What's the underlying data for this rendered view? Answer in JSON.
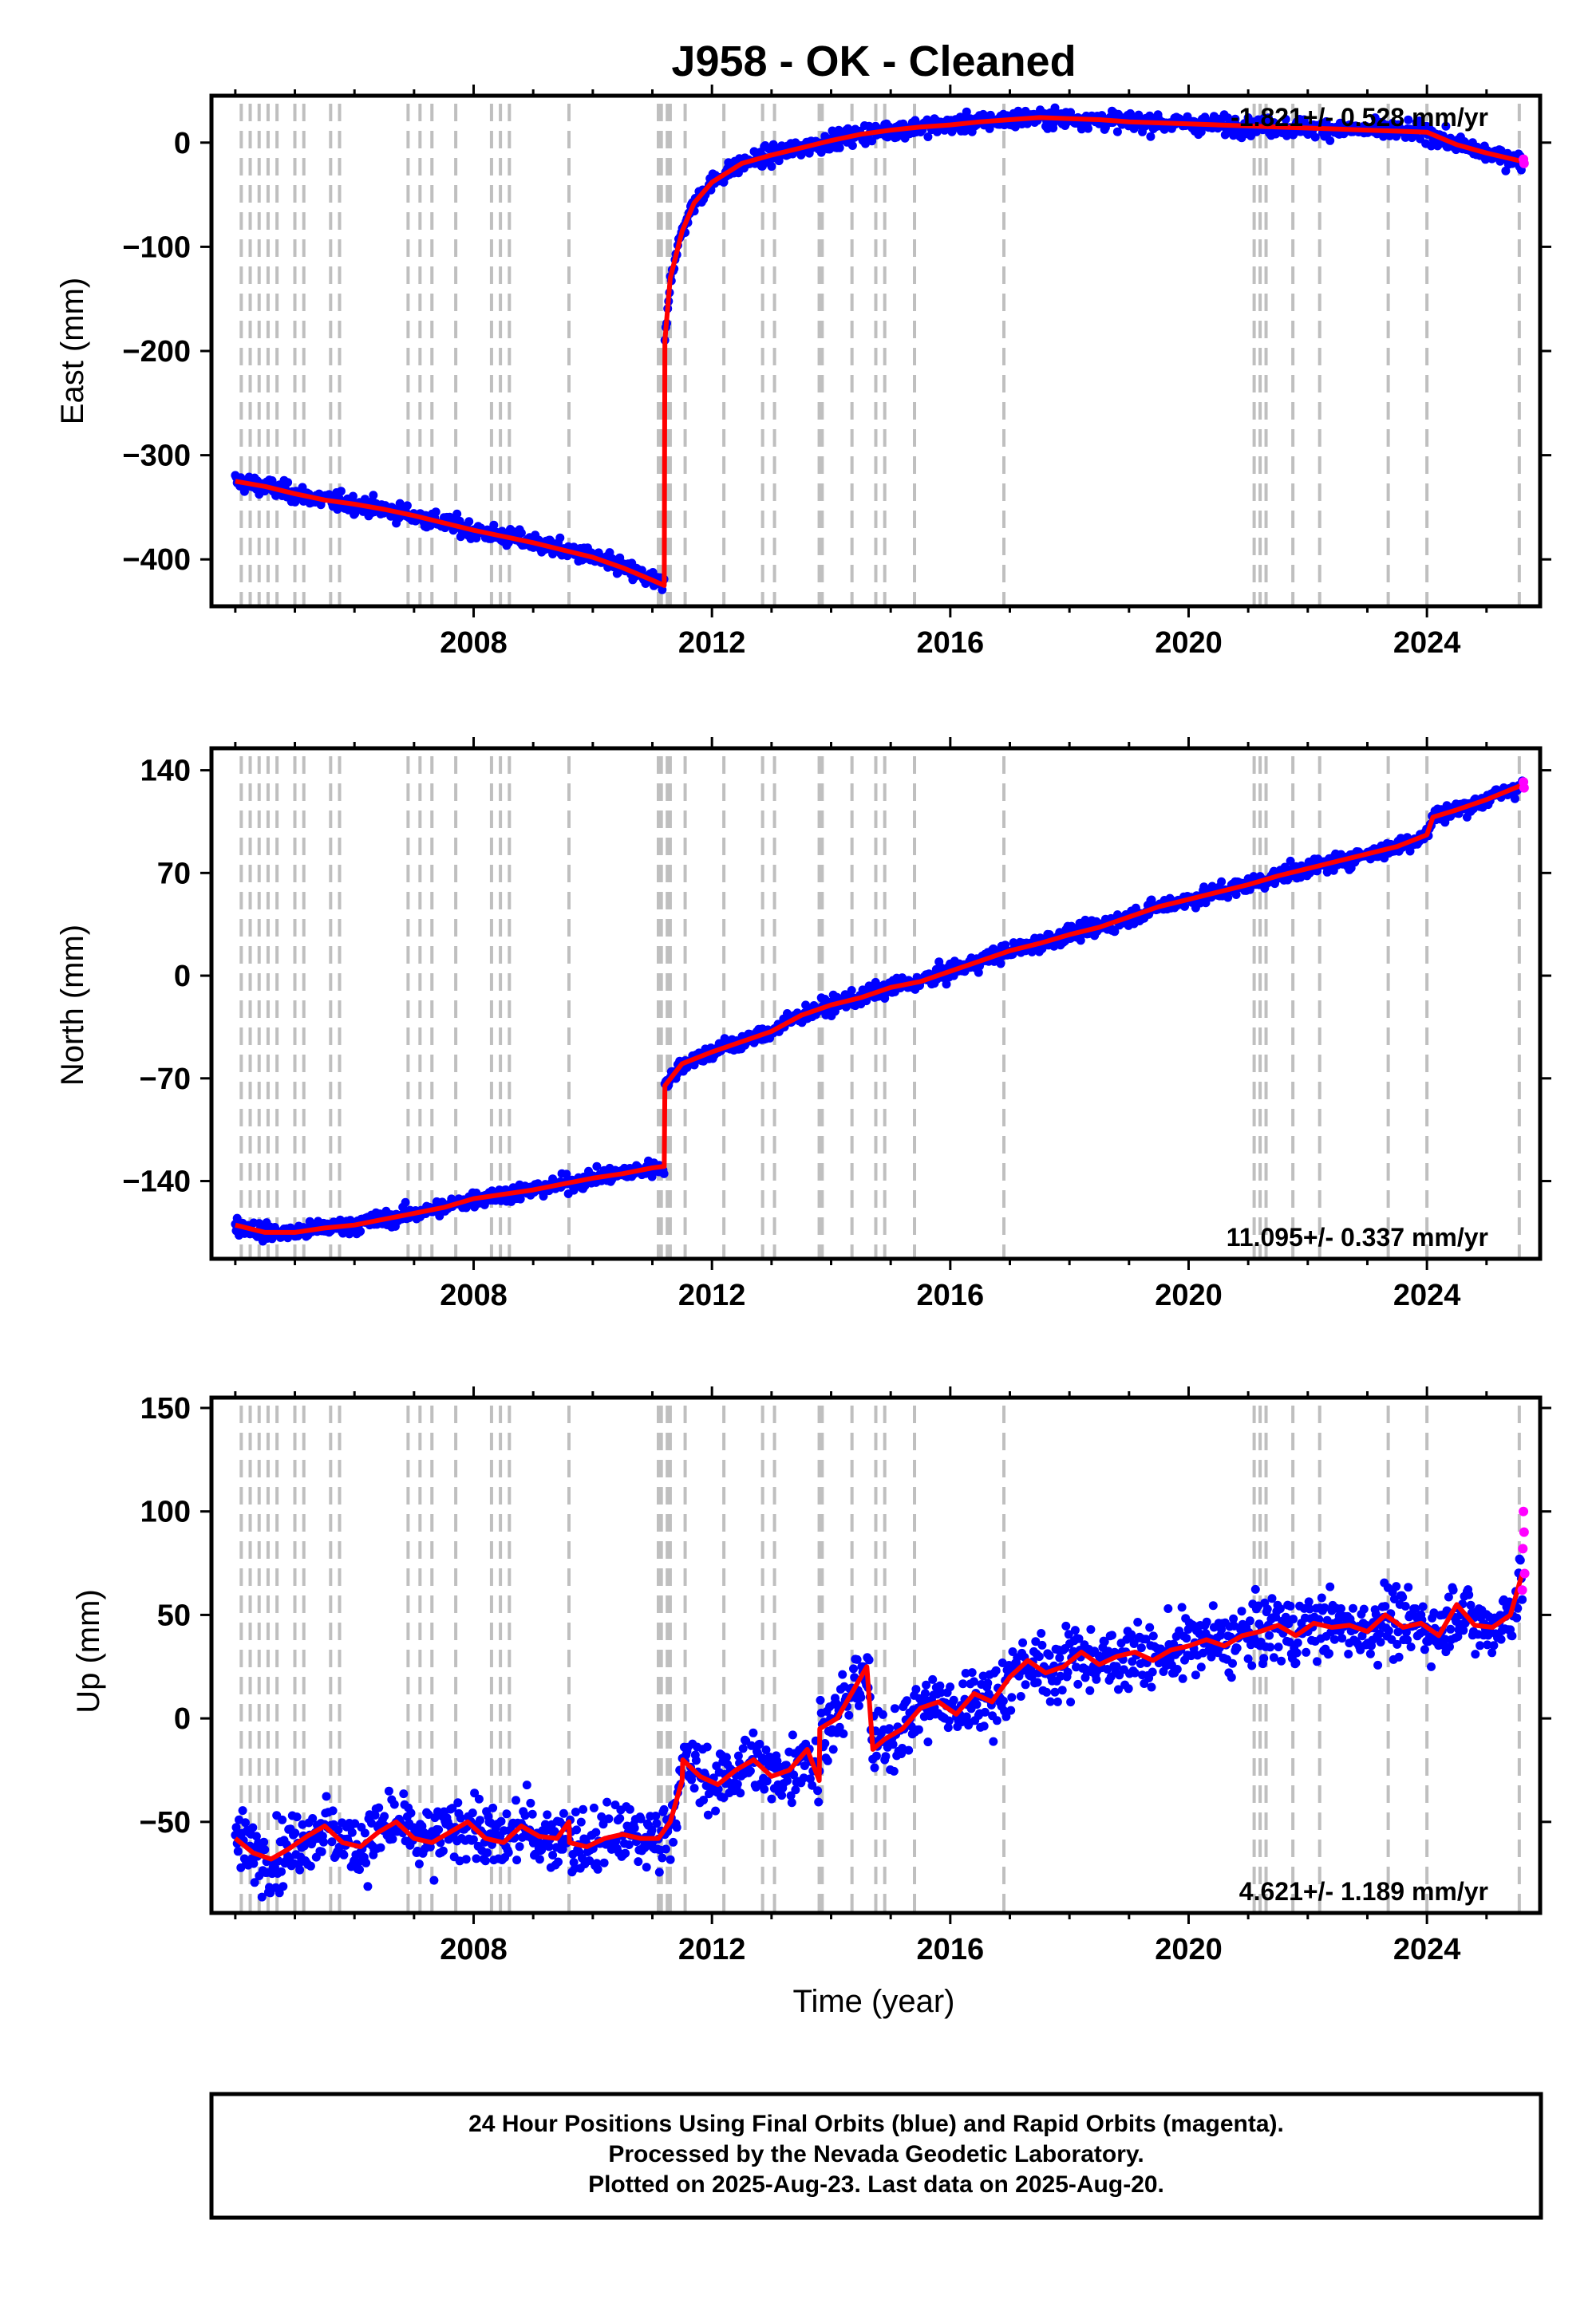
{
  "title": "J958  - OK - Cleaned",
  "footer": {
    "line1": "24 Hour Positions Using Final Orbits (blue) and Rapid Orbits (magenta).",
    "line2": "Processed by the Nevada Geodetic Laboratory.",
    "line3": "Plotted on 2025-Aug-23. Last data on 2025-Aug-20."
  },
  "colors": {
    "final_orbits": "#0000ff",
    "rapid_orbits": "#ff00ff",
    "model": "#ff0000",
    "equipment_change": "#bfbfbf"
  },
  "chart_data": [
    {
      "type": "scatter",
      "name": "east",
      "ylabel": "East (mm)",
      "xlabel": "",
      "xlim": [
        2003.6,
        2025.9
      ],
      "ylim": [
        -445,
        45
      ],
      "x_ticks": [
        2008,
        2012,
        2016,
        2020,
        2024
      ],
      "x_tick_labels": [
        "2008",
        "2012",
        "2016",
        "2020",
        "2024"
      ],
      "y_ticks": [
        0,
        -100,
        -200,
        -300,
        -400
      ],
      "y_tick_labels": [
        "0",
        "−100",
        "−200",
        "−300",
        "−400"
      ],
      "rate_label": "-1.821+/- 0.528 mm/yr",
      "rate_position": "top-right",
      "grid": false,
      "model_x": [
        2004.0,
        2004.5,
        2005.0,
        2005.5,
        2006.0,
        2006.5,
        2007.0,
        2007.5,
        2008.0,
        2008.5,
        2009.0,
        2009.5,
        2010.0,
        2010.5,
        2011.0,
        2011.2,
        2011.21,
        2011.3,
        2011.5,
        2011.7,
        2012.0,
        2012.5,
        2013.0,
        2013.5,
        2014.0,
        2014.5,
        2015.0,
        2015.5,
        2016.0,
        2016.5,
        2017.0,
        2017.5,
        2018.0,
        2018.5,
        2019.0,
        2019.5,
        2020.0,
        2020.5,
        2021.0,
        2021.5,
        2022.0,
        2022.5,
        2023.0,
        2023.5,
        2024.0,
        2024.5,
        2025.0,
        2025.6
      ],
      "model_y": [
        -325,
        -330,
        -337,
        -343,
        -347,
        -352,
        -358,
        -365,
        -372,
        -378,
        -384,
        -391,
        -398,
        -408,
        -420,
        -425,
        -190,
        -130,
        -85,
        -58,
        -38,
        -20,
        -12,
        -5,
        2,
        8,
        12,
        15,
        17,
        20,
        22,
        24,
        23,
        22,
        20,
        19,
        18,
        17,
        16,
        15,
        14,
        13,
        12,
        11,
        10,
        -2,
        -10,
        -18
      ],
      "scatter_noise": 6
    },
    {
      "type": "scatter",
      "name": "north",
      "ylabel": "North (mm)",
      "xlabel": "",
      "xlim": [
        2003.6,
        2025.9
      ],
      "ylim": [
        -193,
        155
      ],
      "x_ticks": [
        2008,
        2012,
        2016,
        2020,
        2024
      ],
      "x_tick_labels": [
        "2008",
        "2012",
        "2016",
        "2020",
        "2024"
      ],
      "y_ticks": [
        140,
        70,
        0,
        -70,
        -140
      ],
      "y_tick_labels": [
        "140",
        "70",
        "0",
        "−70",
        "−140"
      ],
      "rate_label": "11.095+/- 0.337 mm/yr",
      "rate_position": "bottom-right",
      "grid": false,
      "model_x": [
        2004.0,
        2004.5,
        2005.0,
        2005.5,
        2006.0,
        2006.5,
        2007.0,
        2007.5,
        2008.0,
        2008.5,
        2009.0,
        2009.5,
        2010.0,
        2010.5,
        2011.0,
        2011.2,
        2011.21,
        2011.5,
        2012.0,
        2012.5,
        2013.0,
        2013.5,
        2014.0,
        2014.5,
        2015.0,
        2015.5,
        2016.0,
        2016.5,
        2017.0,
        2017.5,
        2018.0,
        2018.5,
        2019.0,
        2019.5,
        2020.0,
        2020.5,
        2021.0,
        2021.5,
        2022.0,
        2022.5,
        2023.0,
        2023.5,
        2024.0,
        2024.1,
        2024.5,
        2025.0,
        2025.6
      ],
      "model_y": [
        -170,
        -175,
        -175,
        -172,
        -170,
        -166,
        -162,
        -158,
        -152,
        -149,
        -146,
        -142,
        -138,
        -135,
        -131,
        -130,
        -75,
        -60,
        -52,
        -45,
        -38,
        -27,
        -20,
        -15,
        -8,
        -4,
        3,
        10,
        17,
        22,
        28,
        33,
        40,
        47,
        52,
        57,
        62,
        68,
        73,
        78,
        83,
        88,
        96,
        108,
        113,
        120,
        130
      ],
      "scatter_noise": 4
    },
    {
      "type": "scatter",
      "name": "up",
      "ylabel": "Up (mm)",
      "xlabel": "Time (year)",
      "xlim": [
        2003.6,
        2025.9
      ],
      "ylim": [
        -94,
        155
      ],
      "x_ticks": [
        2008,
        2012,
        2016,
        2020,
        2024
      ],
      "x_tick_labels": [
        "2008",
        "2012",
        "2016",
        "2020",
        "2024"
      ],
      "y_ticks": [
        150,
        100,
        50,
        0,
        -50
      ],
      "y_tick_labels": [
        "150",
        "100",
        "50",
        "0",
        "−50"
      ],
      "rate_label": "4.621+/- 1.189 mm/yr",
      "rate_position": "bottom-right",
      "grid": false,
      "model_x": [
        2004.0,
        2004.3,
        2004.6,
        2004.9,
        2005.2,
        2005.5,
        2005.8,
        2006.1,
        2006.4,
        2006.7,
        2007.0,
        2007.3,
        2007.6,
        2007.9,
        2008.2,
        2008.5,
        2008.8,
        2009.1,
        2009.4,
        2009.6,
        2009.61,
        2009.9,
        2010.2,
        2010.5,
        2010.8,
        2011.1,
        2011.3,
        2011.5,
        2011.51,
        2011.8,
        2012.1,
        2012.4,
        2012.7,
        2013.0,
        2013.3,
        2013.6,
        2013.8,
        2013.81,
        2014.1,
        2014.4,
        2014.6,
        2014.7,
        2014.9,
        2015.2,
        2015.5,
        2015.8,
        2016.1,
        2016.4,
        2016.7,
        2017.0,
        2017.3,
        2017.6,
        2017.9,
        2018.2,
        2018.5,
        2018.8,
        2019.1,
        2019.4,
        2019.7,
        2020.0,
        2020.3,
        2020.6,
        2020.9,
        2021.2,
        2021.5,
        2021.8,
        2022.1,
        2022.4,
        2022.7,
        2023.0,
        2023.3,
        2023.6,
        2023.9,
        2024.2,
        2024.5,
        2024.8,
        2025.1,
        2025.4,
        2025.6
      ],
      "model_y": [
        -58,
        -65,
        -68,
        -63,
        -57,
        -52,
        -60,
        -62,
        -55,
        -50,
        -58,
        -60,
        -55,
        -50,
        -58,
        -60,
        -52,
        -57,
        -58,
        -50,
        -60,
        -62,
        -58,
        -56,
        -58,
        -58,
        -50,
        -30,
        -20,
        -28,
        -32,
        -25,
        -20,
        -28,
        -25,
        -15,
        -30,
        -5,
        0,
        15,
        25,
        -15,
        -10,
        -5,
        5,
        8,
        2,
        12,
        8,
        20,
        28,
        22,
        25,
        32,
        26,
        30,
        32,
        28,
        33,
        35,
        38,
        35,
        40,
        42,
        45,
        40,
        46,
        44,
        45,
        42,
        50,
        44,
        46,
        40,
        55,
        45,
        44,
        50,
        70
      ],
      "scatter_noise": 11,
      "rapid_points": [
        [
          2025.62,
          100
        ],
        [
          2025.63,
          90
        ],
        [
          2025.61,
          82
        ],
        [
          2025.64,
          70
        ],
        [
          2025.6,
          62
        ]
      ]
    }
  ],
  "equipment_change_years": [
    2004.1,
    2004.25,
    2004.4,
    2004.55,
    2004.7,
    2005.0,
    2005.15,
    2005.6,
    2005.75,
    2006.9,
    2007.1,
    2007.3,
    2007.7,
    2008.3,
    2008.45,
    2008.6,
    2009.6,
    2011.1,
    2011.15,
    2011.25,
    2011.3,
    2011.55,
    2012.2,
    2012.85,
    2013.05,
    2013.8,
    2013.85,
    2014.35,
    2014.75,
    2014.9,
    2015.4,
    2016.9,
    2021.1,
    2021.2,
    2021.3,
    2021.75,
    2022.2,
    2023.35,
    2024.0,
    2025.55
  ]
}
